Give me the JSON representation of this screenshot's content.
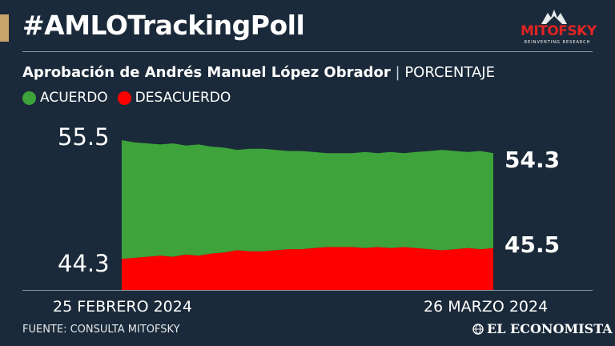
{
  "header": {
    "title": "#AMLOTrackingPoll",
    "accent_color": "#c9a46a",
    "logo": {
      "name": "MITOFSKY",
      "tagline": "REINVENTING RESEARCH",
      "color": "#e02424"
    }
  },
  "subtitle": {
    "bold": "Aprobación de Andrés Manuel López Obrador",
    "separator": "|",
    "light": "PORCENTAJE"
  },
  "chart_data": {
    "type": "area",
    "x_start_label": "25 FEBRERO 2024",
    "x_end_label_a": "26 ",
    "x_end_label_b": "MARZO 2024",
    "y_tick_high": "55.5",
    "y_tick_low": "44.3",
    "ylim": [
      44.3,
      55.5
    ],
    "grid": false,
    "legend_position": "top-left",
    "series": [
      {
        "name": "ACUERDO",
        "color": "#3da33a",
        "values": [
          55.5,
          55.3,
          55.2,
          55.1,
          55.2,
          55.0,
          55.1,
          54.9,
          54.8,
          54.6,
          54.7,
          54.7,
          54.6,
          54.5,
          54.5,
          54.4,
          54.3,
          54.3,
          54.3,
          54.4,
          54.3,
          54.4,
          54.3,
          54.4,
          54.5,
          54.6,
          54.5,
          54.4,
          54.5,
          54.3
        ],
        "end_label": "54.3"
      },
      {
        "name": "DESACUERDO",
        "color": "#ff0000",
        "values": [
          44.5,
          44.6,
          44.7,
          44.8,
          44.7,
          44.9,
          44.8,
          45.0,
          45.1,
          45.3,
          45.2,
          45.2,
          45.3,
          45.4,
          45.4,
          45.5,
          45.6,
          45.6,
          45.6,
          45.5,
          45.6,
          45.5,
          45.6,
          45.5,
          45.4,
          45.3,
          45.4,
          45.5,
          45.4,
          45.5
        ],
        "end_label": "45.5"
      }
    ]
  },
  "footer": {
    "source": "FUENTE: CONSULTA MITOFSKY",
    "brand": "EL ECONOMISTA"
  }
}
